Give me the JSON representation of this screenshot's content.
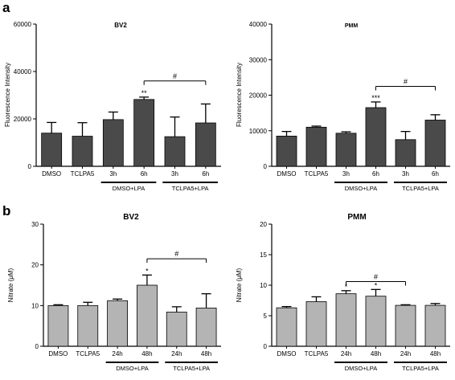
{
  "panels": [
    {
      "letter": "a"
    },
    {
      "letter": "b"
    }
  ],
  "chart_data": [
    {
      "type": "bar",
      "title": "BV2",
      "ylabel": "Fluorescence Intensity",
      "ylim": [
        0,
        60000
      ],
      "yticks": [
        "0",
        "20000",
        "40000",
        "60000"
      ],
      "categories": [
        "DMSO",
        "TCLPA5",
        "3h",
        "6h",
        "3h",
        "6h"
      ],
      "values": [
        14000,
        12700,
        19700,
        28200,
        12500,
        18300
      ],
      "errors": [
        4500,
        5700,
        3200,
        1000,
        8300,
        8000
      ],
      "bar_color": "#4a4a4a",
      "annotations": [
        {
          "index": 3,
          "text": "**"
        }
      ],
      "groups": [
        {
          "label": "DMSO+LPA",
          "from": 2,
          "to": 3
        },
        {
          "label": "TCLPA5+LPA",
          "from": 4,
          "to": 5
        }
      ],
      "bracket": {
        "from": 3,
        "to": 5,
        "text": "#",
        "y": 36000
      }
    },
    {
      "type": "bar",
      "title": "PMM",
      "ylabel": "Fluorescence Intensity",
      "ylim": [
        0,
        40000
      ],
      "yticks": [
        "0",
        "10000",
        "20000",
        "30000",
        "40000"
      ],
      "categories": [
        "DMSO",
        "TCLPA5",
        "3h",
        "6h",
        "3h",
        "6h"
      ],
      "values": [
        8500,
        11000,
        9300,
        16500,
        7500,
        13000
      ],
      "errors": [
        1300,
        300,
        400,
        1600,
        2300,
        1500
      ],
      "bar_color": "#4a4a4a",
      "annotations": [
        {
          "index": 3,
          "text": "***"
        }
      ],
      "groups": [
        {
          "label": "DMSO+LPA",
          "from": 2,
          "to": 3
        },
        {
          "label": "TCLPA5+LPA",
          "from": 4,
          "to": 5
        }
      ],
      "bracket": {
        "from": 3,
        "to": 5,
        "text": "#",
        "y": 22500
      }
    },
    {
      "type": "bar",
      "title": "BV2",
      "ylabel": "Nitrate (μM)",
      "ylim": [
        0,
        30
      ],
      "yticks": [
        "0",
        "10",
        "20",
        "30"
      ],
      "categories": [
        "DMSO",
        "TCLPA5",
        "24h",
        "48h",
        "24h",
        "48h"
      ],
      "values": [
        10,
        10,
        11.2,
        15,
        8.4,
        9.4
      ],
      "errors": [
        0.2,
        0.8,
        0.4,
        2.5,
        1.3,
        3.5
      ],
      "bar_color": "#b4b4b4",
      "annotations": [
        {
          "index": 3,
          "text": "*"
        }
      ],
      "groups": [
        {
          "label": "DMSO+LPA",
          "from": 2,
          "to": 3
        },
        {
          "label": "TCLPA5+LPA",
          "from": 4,
          "to": 5
        }
      ],
      "bracket": {
        "from": 3,
        "to": 5,
        "text": "#",
        "y": 21.5
      }
    },
    {
      "type": "bar",
      "title": "PMM",
      "ylabel": "Nitrate (μM)",
      "ylim": [
        0,
        20
      ],
      "yticks": [
        "0",
        "5",
        "10",
        "15",
        "20"
      ],
      "categories": [
        "DMSO",
        "TCLPA5",
        "24h",
        "48h",
        "24h",
        "48h"
      ],
      "values": [
        6.3,
        7.3,
        8.6,
        8.2,
        6.7,
        6.7
      ],
      "errors": [
        0.2,
        0.8,
        0.5,
        1.1,
        0.1,
        0.3
      ],
      "bar_color": "#b4b4b4",
      "annotations": [
        {
          "index": 2,
          "text": "*"
        },
        {
          "index": 3,
          "text": "*"
        }
      ],
      "groups": [
        {
          "label": "DMSO+LPA",
          "from": 2,
          "to": 3
        },
        {
          "label": "TCLPA5+LPA",
          "from": 4,
          "to": 5
        }
      ],
      "bracket": {
        "from": 2,
        "to": 4,
        "text": "#",
        "y": 10.6
      }
    }
  ]
}
